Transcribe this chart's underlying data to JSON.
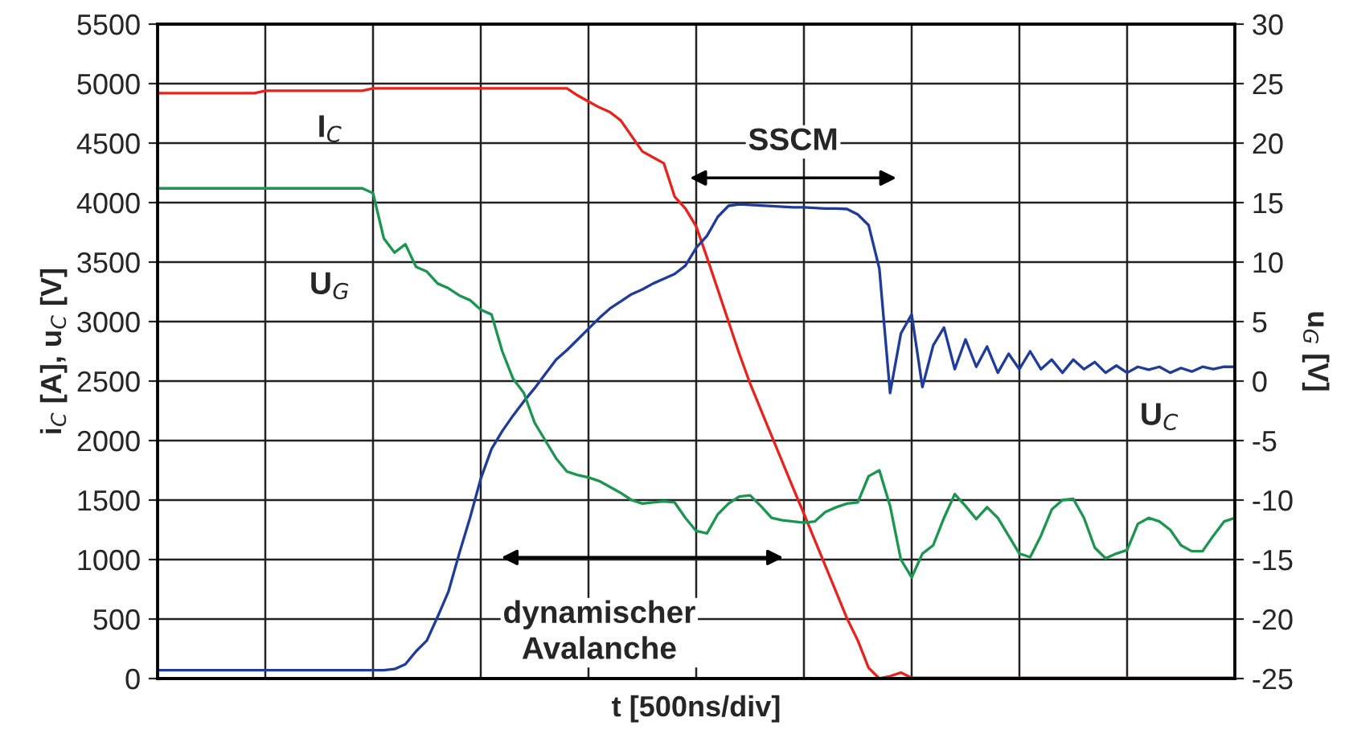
{
  "chart_data": {
    "type": "line",
    "xlabel": "t [500ns/div]",
    "ylabel": "i$_{C}$ [A], u$_{C}$ [V]",
    "y2label": "u$_{G}$ [V]",
    "categories": [
      null,
      null,
      null,
      null,
      null,
      null,
      null,
      null,
      null,
      null,
      null,
      null,
      null,
      null,
      null,
      null,
      null,
      null,
      null,
      null,
      null,
      null,
      null,
      null,
      null,
      null,
      null,
      null,
      null,
      null,
      null,
      null,
      null,
      null,
      null,
      null,
      null,
      null,
      null,
      null,
      null,
      null,
      null,
      null,
      null,
      null,
      null,
      null,
      null,
      null,
      null,
      null,
      null,
      null,
      null,
      null,
      null,
      null,
      null,
      null,
      null,
      null,
      null,
      null,
      null,
      null,
      null,
      null,
      null,
      null,
      null,
      null,
      null,
      null,
      null,
      null,
      null,
      null,
      null,
      null,
      null,
      null,
      null,
      null,
      null,
      null,
      null,
      null,
      null,
      null,
      null,
      null,
      null,
      null,
      null,
      null,
      null,
      null,
      null,
      null,
      null
    ],
    "ylim": [
      0,
      5500
    ],
    "yticks": [
      0,
      500,
      1000,
      1500,
      2000,
      2500,
      3000,
      3500,
      4000,
      4500,
      5000,
      5500
    ],
    "y2lim": [
      -25,
      30
    ],
    "y2ticks": [
      -25,
      -20,
      -15,
      -10,
      -5,
      0,
      5,
      10,
      15,
      20,
      25,
      30
    ],
    "grid": true,
    "legend": false,
    "line_style": "solid",
    "series": [
      {
        "color": "#e8231e",
        "values": [
          4920,
          4920,
          4920,
          4920,
          4920,
          4920,
          4920,
          4920,
          4920,
          4920,
          4940,
          4940,
          4940,
          4940,
          4940,
          4940,
          4940,
          4940,
          4940,
          4940,
          4960,
          4960,
          4960,
          4960,
          4960,
          4960,
          4960,
          4960,
          4960,
          4960,
          4960,
          4960,
          4960,
          4960,
          4960,
          4960,
          4960,
          4960,
          4960,
          4900,
          4850,
          4800,
          4760,
          4690,
          4560,
          4430,
          4380,
          4330,
          4050,
          3950,
          3800,
          3540,
          3270,
          3000,
          2730,
          2480,
          2260,
          2040,
          1820,
          1600,
          1385,
          1165,
          945,
          725,
          505,
          320,
          90,
          0,
          20,
          50,
          5,
          5,
          5,
          5,
          5,
          5,
          5,
          5,
          5,
          5,
          5,
          5,
          5,
          5,
          5,
          5,
          5,
          5,
          5,
          5,
          5,
          5,
          5,
          5,
          5,
          5,
          5,
          5,
          5,
          5,
          5
        ]
      },
      {
        "color": "#1f3c9a",
        "values": [
          70,
          70,
          70,
          70,
          70,
          70,
          70,
          70,
          70,
          70,
          70,
          70,
          70,
          70,
          70,
          70,
          70,
          70,
          70,
          70,
          70,
          70,
          80,
          120,
          230,
          320,
          520,
          730,
          1050,
          1350,
          1680,
          1930,
          2080,
          2210,
          2330,
          2440,
          2560,
          2680,
          2760,
          2850,
          2940,
          3030,
          3110,
          3170,
          3230,
          3270,
          3320,
          3360,
          3400,
          3470,
          3620,
          3720,
          3880,
          3973,
          3986,
          3980,
          3975,
          3970,
          3965,
          3960,
          3960,
          3955,
          3950,
          3950,
          3946,
          3900,
          3811,
          3446,
          2400,
          2900,
          3060,
          2450,
          2800,
          2950,
          2600,
          2850,
          2620,
          2790,
          2570,
          2730,
          2600,
          2750,
          2600,
          2680,
          2570,
          2680,
          2600,
          2660,
          2570,
          2630,
          2570,
          2620,
          2595,
          2620,
          2570,
          2610,
          2580,
          2620,
          2600,
          2620,
          2620
        ]
      },
      {
        "color": "#1a9650",
        "axis": "y2",
        "values": [
          16.2,
          16.2,
          16.2,
          16.2,
          16.2,
          16.2,
          16.2,
          16.2,
          16.2,
          16.2,
          16.2,
          16.2,
          16.2,
          16.2,
          16.2,
          16.2,
          16.2,
          16.2,
          16.2,
          16.2,
          15.8,
          12,
          10.8,
          11.5,
          9.6,
          9.2,
          8.2,
          7.8,
          7.2,
          6.8,
          6.0,
          5.6,
          2.5,
          0.2,
          -1.0,
          -3.5,
          -5.0,
          -6.5,
          -7.6,
          -7.9,
          -8.1,
          -8.4,
          -8.9,
          -9.4,
          -10.0,
          -10.3,
          -10.2,
          -10.1,
          -10.2,
          -11.5,
          -12.6,
          -12.8,
          -11.2,
          -10.3,
          -9.7,
          -9.6,
          -10.5,
          -11.5,
          -11.7,
          -11.8,
          -11.9,
          -11.8,
          -11.0,
          -10.6,
          -10.3,
          -10.2,
          -8.0,
          -7.5,
          -10.5,
          -15.0,
          -16.5,
          -14.5,
          -13.8,
          -11.5,
          -9.5,
          -10.5,
          -11.6,
          -10.6,
          -11.5,
          -13.0,
          -14.5,
          -14.8,
          -13.0,
          -10.8,
          -10.0,
          -9.9,
          -11.5,
          -14.0,
          -14.9,
          -14.5,
          -14.2,
          -12.0,
          -11.5,
          -11.8,
          -12.5,
          -13.8,
          -14.3,
          -14.3,
          -13.0,
          -11.8,
          -11.5
        ]
      }
    ],
    "annotations": [
      "I$_{C}$",
      "U$_{G}$",
      "U$_{C}$",
      "SSCM",
      "dynamischer\nAvalanche"
    ]
  }
}
